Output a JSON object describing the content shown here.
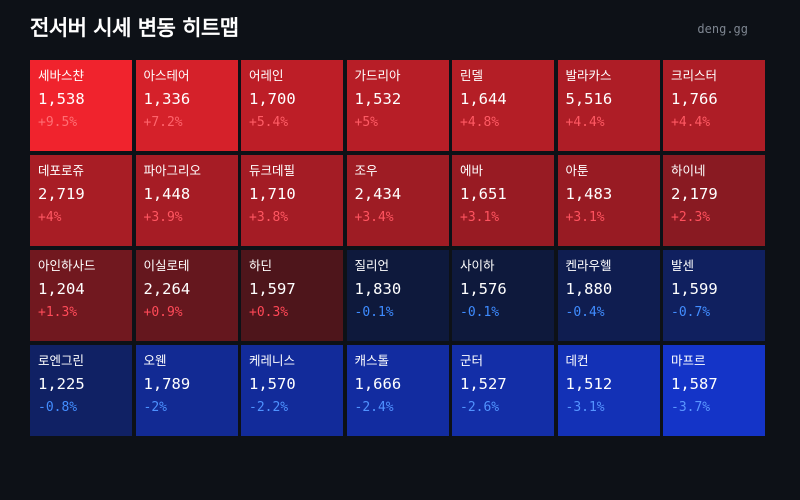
{
  "header": {
    "title": "전서버 시세 변동 히트맵",
    "source": "deng.gg"
  },
  "colors": {
    "background": "#0d1117",
    "up_strong": "#f0232d",
    "down_strong": "#1434c8",
    "up_text": "#ff4655",
    "down_text": "#3d8bff"
  },
  "chart_data": {
    "type": "heatmap",
    "title": "전서버 시세 변동 히트맵",
    "value_format": "price_and_percent_change",
    "columns": 7,
    "cells": [
      {
        "server": "세바스챤",
        "price": 1538,
        "change_pct": 9.5,
        "price_label": "1,538",
        "change_label": "+9.5%"
      },
      {
        "server": "아스테어",
        "price": 1336,
        "change_pct": 7.2,
        "price_label": "1,336",
        "change_label": "+7.2%"
      },
      {
        "server": "어레인",
        "price": 1700,
        "change_pct": 5.4,
        "price_label": "1,700",
        "change_label": "+5.4%"
      },
      {
        "server": "가드리아",
        "price": 1532,
        "change_pct": 5,
        "price_label": "1,532",
        "change_label": "+5%"
      },
      {
        "server": "린델",
        "price": 1644,
        "change_pct": 4.8,
        "price_label": "1,644",
        "change_label": "+4.8%"
      },
      {
        "server": "발라카스",
        "price": 5516,
        "change_pct": 4.4,
        "price_label": "5,516",
        "change_label": "+4.4%"
      },
      {
        "server": "크리스터",
        "price": 1766,
        "change_pct": 4.4,
        "price_label": "1,766",
        "change_label": "+4.4%"
      },
      {
        "server": "데포로쥬",
        "price": 2719,
        "change_pct": 4,
        "price_label": "2,719",
        "change_label": "+4%"
      },
      {
        "server": "파아그리오",
        "price": 1448,
        "change_pct": 3.9,
        "price_label": "1,448",
        "change_label": "+3.9%"
      },
      {
        "server": "듀크데필",
        "price": 1710,
        "change_pct": 3.8,
        "price_label": "1,710",
        "change_label": "+3.8%"
      },
      {
        "server": "조우",
        "price": 2434,
        "change_pct": 3.4,
        "price_label": "2,434",
        "change_label": "+3.4%"
      },
      {
        "server": "에바",
        "price": 1651,
        "change_pct": 3.1,
        "price_label": "1,651",
        "change_label": "+3.1%"
      },
      {
        "server": "아툰",
        "price": 1483,
        "change_pct": 3.1,
        "price_label": "1,483",
        "change_label": "+3.1%"
      },
      {
        "server": "하이네",
        "price": 2179,
        "change_pct": 2.3,
        "price_label": "2,179",
        "change_label": "+2.3%"
      },
      {
        "server": "아인하사드",
        "price": 1204,
        "change_pct": 1.3,
        "price_label": "1,204",
        "change_label": "+1.3%"
      },
      {
        "server": "이실로테",
        "price": 2264,
        "change_pct": 0.9,
        "price_label": "2,264",
        "change_label": "+0.9%"
      },
      {
        "server": "하딘",
        "price": 1597,
        "change_pct": 0.3,
        "price_label": "1,597",
        "change_label": "+0.3%"
      },
      {
        "server": "질리언",
        "price": 1830,
        "change_pct": -0.1,
        "price_label": "1,830",
        "change_label": "-0.1%"
      },
      {
        "server": "사이하",
        "price": 1576,
        "change_pct": -0.1,
        "price_label": "1,576",
        "change_label": "-0.1%"
      },
      {
        "server": "켄라우헬",
        "price": 1880,
        "change_pct": -0.4,
        "price_label": "1,880",
        "change_label": "-0.4%"
      },
      {
        "server": "발센",
        "price": 1599,
        "change_pct": -0.7,
        "price_label": "1,599",
        "change_label": "-0.7%"
      },
      {
        "server": "로엔그린",
        "price": 1225,
        "change_pct": -0.8,
        "price_label": "1,225",
        "change_label": "-0.8%"
      },
      {
        "server": "오웬",
        "price": 1789,
        "change_pct": -2,
        "price_label": "1,789",
        "change_label": "-2%"
      },
      {
        "server": "케레니스",
        "price": 1570,
        "change_pct": -2.2,
        "price_label": "1,570",
        "change_label": "-2.2%"
      },
      {
        "server": "캐스톨",
        "price": 1666,
        "change_pct": -2.4,
        "price_label": "1,666",
        "change_label": "-2.4%"
      },
      {
        "server": "군터",
        "price": 1527,
        "change_pct": -2.6,
        "price_label": "1,527",
        "change_label": "-2.6%"
      },
      {
        "server": "데컨",
        "price": 1512,
        "change_pct": -3.1,
        "price_label": "1,512",
        "change_label": "-3.1%"
      },
      {
        "server": "마프르",
        "price": 1587,
        "change_pct": -3.7,
        "price_label": "1,587",
        "change_label": "-3.7%"
      }
    ]
  }
}
